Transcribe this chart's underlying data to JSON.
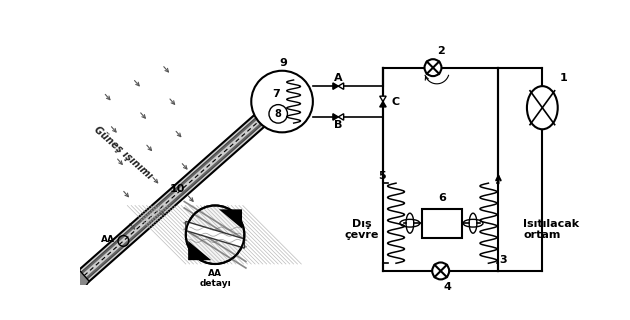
{
  "bg_color": "#ffffff",
  "line_color": "#000000",
  "labels": {
    "gunes": "Güneş ışınımı",
    "dis_cevre": "Dış\nçevre",
    "isitilacak": "Isıtılacak\nortam",
    "aa": "AA",
    "aa_detayi": "AA\ndetayı",
    "num_1": "1",
    "num_2": "2",
    "num_3": "3",
    "num_4": "4",
    "num_5": "5",
    "num_6": "6",
    "num_7": "7",
    "num_8": "8",
    "num_9": "9",
    "num_10": "10",
    "letter_A": "A",
    "letter_B": "B",
    "letter_C": "C"
  }
}
